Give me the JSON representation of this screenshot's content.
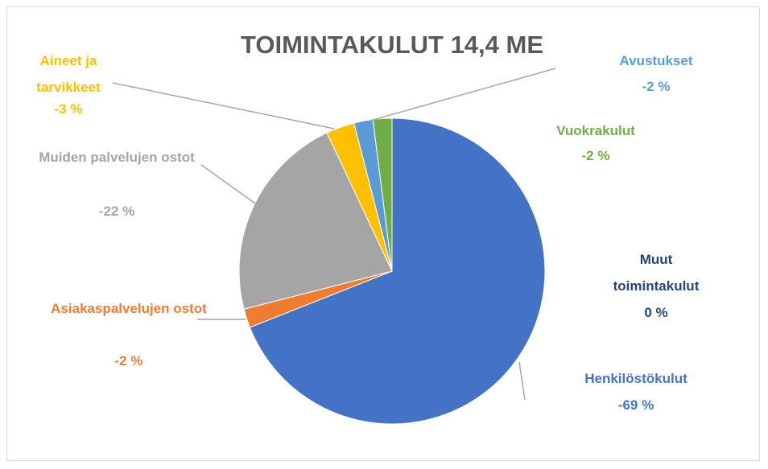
{
  "chart_data": {
    "type": "pie",
    "title": "TOIMINTAKULUT 14,4 ME",
    "categories": [
      "Henkilöstökulut",
      "Asiakaspalvelujen ostot",
      "Muiden palvelujen ostot",
      "Aineet ja tarvikkeet",
      "Avustukset",
      "Vuokrakulut",
      "Muut toimintakulut"
    ],
    "values": [
      -69,
      -2,
      -22,
      -3,
      -2,
      -2,
      0
    ],
    "value_labels": [
      "-69 %",
      "-2 %",
      "-22 %",
      "-3 %",
      "-2 %",
      "-2 %",
      "0 %"
    ],
    "colors": [
      "#4472c4",
      "#ed7d31",
      "#a5a5a5",
      "#ffc000",
      "#5b9bd5",
      "#70ad47",
      "#264478"
    ]
  }
}
